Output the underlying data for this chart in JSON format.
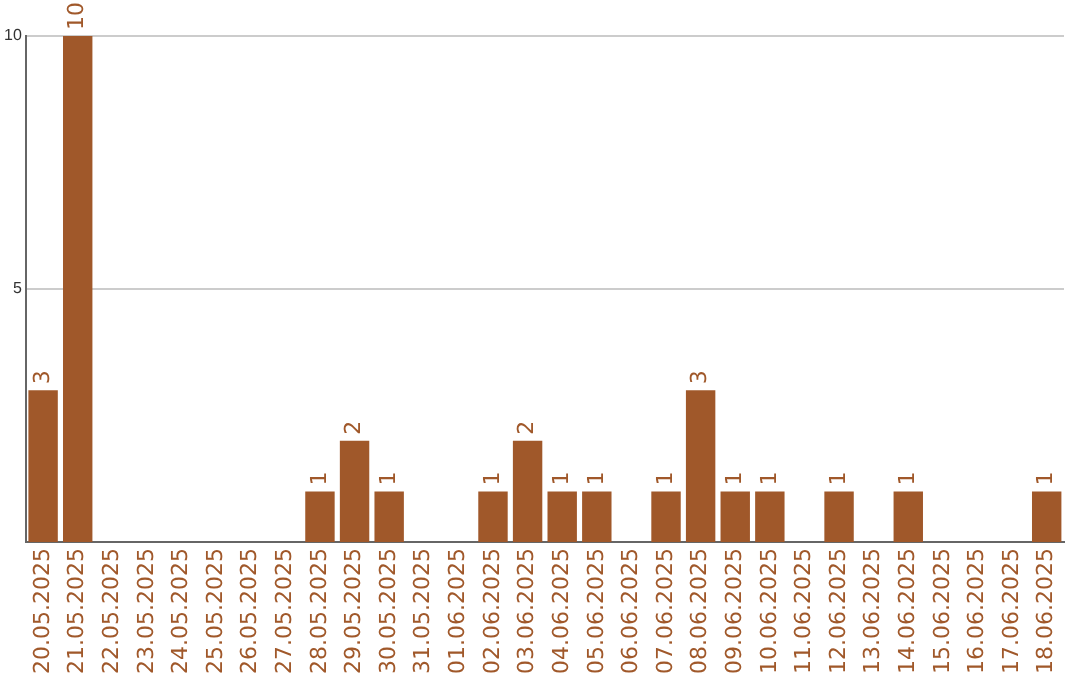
{
  "chart_data": {
    "type": "bar",
    "categories": [
      "20.05.2025",
      "21.05.2025",
      "22.05.2025",
      "23.05.2025",
      "24.05.2025",
      "25.05.2025",
      "26.05.2025",
      "27.05.2025",
      "28.05.2025",
      "29.05.2025",
      "30.05.2025",
      "31.05.2025",
      "01.06.2025",
      "02.06.2025",
      "03.06.2025",
      "04.06.2025",
      "05.06.2025",
      "06.06.2025",
      "07.06.2025",
      "08.06.2025",
      "09.06.2025",
      "10.06.2025",
      "11.06.2025",
      "12.06.2025",
      "13.06.2025",
      "14.06.2025",
      "15.06.2025",
      "16.06.2025",
      "17.06.2025",
      "18.06.2025"
    ],
    "values": [
      3,
      10,
      0,
      0,
      0,
      0,
      0,
      0,
      1,
      2,
      1,
      0,
      0,
      1,
      2,
      1,
      1,
      0,
      1,
      3,
      1,
      1,
      0,
      1,
      0,
      1,
      0,
      0,
      0,
      1
    ],
    "value_labels": [
      "3",
      "10",
      null,
      null,
      null,
      null,
      null,
      null,
      "1",
      "2",
      "1",
      null,
      null,
      "1",
      "2",
      "1",
      "1",
      null,
      "1",
      "3",
      "1",
      "1",
      null,
      "1",
      null,
      "1",
      null,
      null,
      null,
      "1"
    ],
    "color": "#a0582a",
    "ylim": [
      0,
      10
    ],
    "yticks": [
      5,
      10
    ],
    "grid": "y",
    "legend": false
  }
}
